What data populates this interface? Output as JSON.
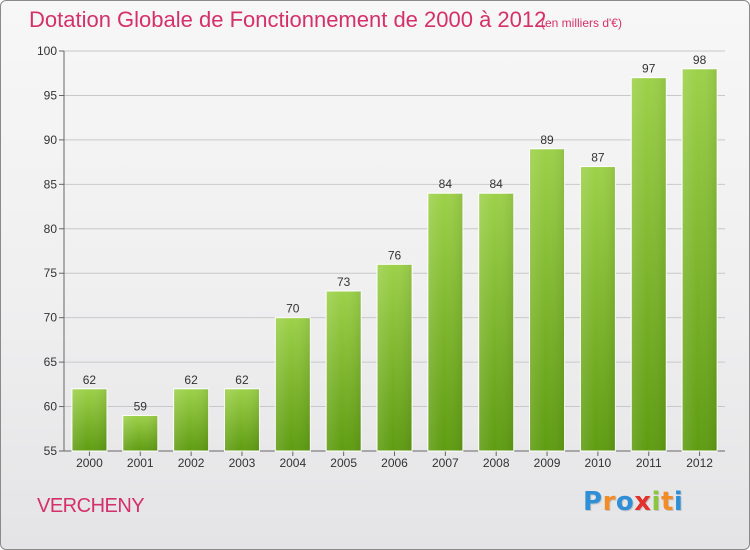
{
  "title": "Dotation Globale de Fonctionnement de 2000 à 2012",
  "unit_note": "(en milliers d'€)",
  "commune": "VERCHENY",
  "logo": {
    "text": "Proxiti",
    "letters": [
      {
        "char": "P",
        "color": "#2f8fd6"
      },
      {
        "char": "r",
        "color": "#f28c28"
      },
      {
        "char": "o",
        "color": "#2f8fd6"
      },
      {
        "char": "x",
        "color": "#e2322b"
      },
      {
        "char": "i",
        "color": "#8cc63f"
      },
      {
        "char": "t",
        "color": "#f28c28"
      },
      {
        "char": "i",
        "color": "#2f8fd6"
      }
    ]
  },
  "colors": {
    "title": "#d4306a",
    "bar_top": "#9dd14a",
    "bar_bottom": "#5f9c12",
    "grid": "#c8c8c8"
  },
  "chart_data": {
    "type": "bar",
    "categories": [
      "2000",
      "2001",
      "2002",
      "2003",
      "2004",
      "2005",
      "2006",
      "2007",
      "2008",
      "2009",
      "2010",
      "2011",
      "2012"
    ],
    "values": [
      62,
      59,
      62,
      62,
      70,
      73,
      76,
      84,
      84,
      89,
      87,
      97,
      98
    ],
    "ylim": [
      55,
      100
    ],
    "yticks": [
      55,
      60,
      65,
      70,
      75,
      80,
      85,
      90,
      95,
      100
    ],
    "grid": true,
    "legend": "none"
  }
}
